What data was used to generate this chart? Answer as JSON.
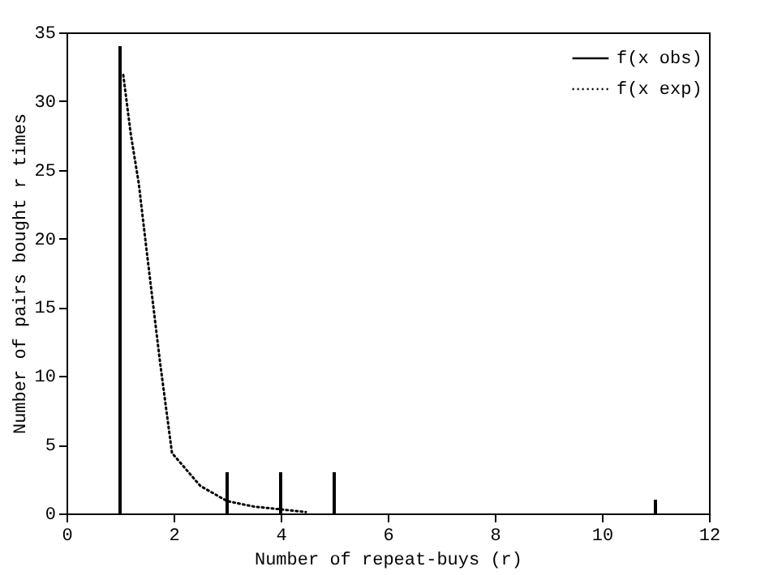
{
  "chart_data": {
    "type": "bar",
    "xlabel": "Number of repeat-buys (r)",
    "ylabel": "Number of pairs bought r times",
    "xlim": [
      0,
      12
    ],
    "xticks": [
      0,
      2,
      4,
      6,
      8,
      10,
      12
    ],
    "ylim": [
      0,
      35
    ],
    "yticks": [
      0,
      5,
      10,
      15,
      20,
      25,
      30,
      35
    ],
    "grid": false,
    "legend": "top right",
    "series": [
      {
        "name": "f(x obs)",
        "color": "#000000",
        "line_style": "solid",
        "x": [
          1,
          3,
          4,
          5,
          11
        ],
        "values": [
          34,
          3,
          3,
          3,
          1
        ]
      },
      {
        "name": "f(x exp)",
        "type": "line",
        "color": "#000000",
        "line_style": "dotted",
        "x": [
          1.06,
          1.2,
          1.35,
          1.5,
          1.75,
          1.97,
          2.5,
          3,
          3.5,
          4,
          4.47
        ],
        "values": [
          31.9,
          27.6,
          24,
          19,
          10.9,
          4.4,
          2,
          0.9,
          0.5,
          0.3,
          0.1
        ]
      }
    ]
  }
}
